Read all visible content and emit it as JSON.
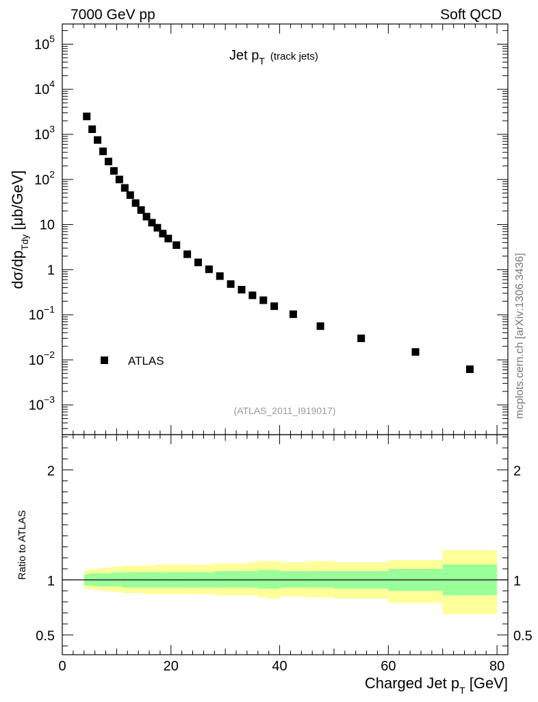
{
  "header": {
    "left": "7000 GeV pp",
    "right": "Soft QCD"
  },
  "plot_title": {
    "main": "Jet p",
    "sub": "T",
    "note": "(track jets)"
  },
  "reference": "(ATLAS_2011_I919017)",
  "side_label": "mcplots.cern.ch [arXiv:1306.3436]",
  "legend": {
    "label": "ATLAS",
    "placement": "lower-left"
  },
  "colors": {
    "band_inner": "#99ff99",
    "band_outer": "#ffff99",
    "marker": "#000000"
  },
  "chart_data": [
    {
      "type": "scatter",
      "panel": "main",
      "yscale": "log",
      "ylabel": "dσ/dp_Tdy [μb/GeV]",
      "ylabel_parts": {
        "pre": "dσ/dp",
        "sub": "Tdy",
        "post": " [μb/GeV]"
      },
      "xlim": [
        0,
        82
      ],
      "ylim": [
        0.00022,
        280000
      ],
      "y_ticks": [
        {
          "value": 100000,
          "base": "10",
          "exp": "5"
        },
        {
          "value": 10000,
          "base": "10",
          "exp": "4"
        },
        {
          "value": 1000,
          "base": "10",
          "exp": "3"
        },
        {
          "value": 100,
          "base": "10",
          "exp": "2"
        },
        {
          "value": 10,
          "base": "10",
          "exp": ""
        },
        {
          "value": 1,
          "base": "1",
          "exp": ""
        },
        {
          "value": 0.1,
          "base": "10",
          "exp": "−1"
        },
        {
          "value": 0.01,
          "base": "10",
          "exp": "−2"
        },
        {
          "value": 0.001,
          "base": "10",
          "exp": "−3"
        }
      ],
      "series": [
        {
          "name": "ATLAS",
          "marker": "square",
          "x": [
            4.5,
            5.5,
            6.5,
            7.5,
            8.5,
            9.5,
            10.5,
            11.5,
            12.5,
            13.5,
            14.5,
            15.5,
            16.5,
            17.5,
            18.5,
            19.5,
            21,
            23,
            25,
            27,
            29,
            31,
            33,
            35,
            37,
            39,
            42.5,
            47.5,
            55,
            65,
            75
          ],
          "y": [
            2500,
            1300,
            750,
            420,
            250,
            155,
            100,
            65,
            45,
            30,
            21,
            15,
            11,
            8.5,
            6.3,
            4.9,
            3.5,
            2.2,
            1.45,
            1.02,
            0.72,
            0.48,
            0.36,
            0.27,
            0.21,
            0.155,
            0.103,
            0.056,
            0.03,
            0.015,
            0.0062
          ]
        }
      ]
    },
    {
      "type": "area",
      "panel": "ratio",
      "ylabel": "Ratio to ATLAS",
      "xlabel_parts": {
        "pre": "Charged Jet p",
        "sub": "T",
        "post": " [GeV]"
      },
      "xlim": [
        0,
        82
      ],
      "ylim": [
        0.32,
        2.32
      ],
      "x_ticks": [
        0,
        20,
        40,
        60,
        80
      ],
      "y_ticks": [
        0.5,
        1,
        2
      ],
      "y_tick_labels": [
        "0.5",
        "1",
        "2"
      ],
      "reference_line": 1,
      "bins": [
        {
          "lo": 4,
          "hi": 5,
          "inner": [
            0.95,
            1.05
          ],
          "outer": [
            0.92,
            1.09
          ]
        },
        {
          "lo": 5,
          "hi": 6,
          "inner": [
            0.95,
            1.06
          ],
          "outer": [
            0.91,
            1.1
          ]
        },
        {
          "lo": 6,
          "hi": 7,
          "inner": [
            0.94,
            1.06
          ],
          "outer": [
            0.91,
            1.1
          ]
        },
        {
          "lo": 7,
          "hi": 8,
          "inner": [
            0.94,
            1.06
          ],
          "outer": [
            0.9,
            1.11
          ]
        },
        {
          "lo": 8,
          "hi": 9,
          "inner": [
            0.94,
            1.06
          ],
          "outer": [
            0.9,
            1.11
          ]
        },
        {
          "lo": 9,
          "hi": 10,
          "inner": [
            0.94,
            1.07
          ],
          "outer": [
            0.89,
            1.12
          ]
        },
        {
          "lo": 10,
          "hi": 11,
          "inner": [
            0.94,
            1.07
          ],
          "outer": [
            0.89,
            1.12
          ]
        },
        {
          "lo": 11,
          "hi": 12,
          "inner": [
            0.93,
            1.07
          ],
          "outer": [
            0.88,
            1.13
          ]
        },
        {
          "lo": 12,
          "hi": 13,
          "inner": [
            0.93,
            1.07
          ],
          "outer": [
            0.88,
            1.13
          ]
        },
        {
          "lo": 13,
          "hi": 14,
          "inner": [
            0.93,
            1.07
          ],
          "outer": [
            0.88,
            1.13
          ]
        },
        {
          "lo": 14,
          "hi": 15,
          "inner": [
            0.93,
            1.07
          ],
          "outer": [
            0.88,
            1.13
          ]
        },
        {
          "lo": 15,
          "hi": 16,
          "inner": [
            0.93,
            1.07
          ],
          "outer": [
            0.87,
            1.13
          ]
        },
        {
          "lo": 16,
          "hi": 17,
          "inner": [
            0.93,
            1.07
          ],
          "outer": [
            0.87,
            1.13
          ]
        },
        {
          "lo": 17,
          "hi": 18,
          "inner": [
            0.93,
            1.07
          ],
          "outer": [
            0.87,
            1.14
          ]
        },
        {
          "lo": 18,
          "hi": 19,
          "inner": [
            0.93,
            1.07
          ],
          "outer": [
            0.87,
            1.14
          ]
        },
        {
          "lo": 19,
          "hi": 20,
          "inner": [
            0.93,
            1.07
          ],
          "outer": [
            0.87,
            1.14
          ]
        },
        {
          "lo": 20,
          "hi": 22,
          "inner": [
            0.93,
            1.07
          ],
          "outer": [
            0.87,
            1.14
          ]
        },
        {
          "lo": 22,
          "hi": 24,
          "inner": [
            0.93,
            1.07
          ],
          "outer": [
            0.87,
            1.14
          ]
        },
        {
          "lo": 24,
          "hi": 26,
          "inner": [
            0.93,
            1.07
          ],
          "outer": [
            0.87,
            1.14
          ]
        },
        {
          "lo": 26,
          "hi": 28,
          "inner": [
            0.93,
            1.07
          ],
          "outer": [
            0.87,
            1.14
          ]
        },
        {
          "lo": 28,
          "hi": 30,
          "inner": [
            0.93,
            1.08
          ],
          "outer": [
            0.86,
            1.15
          ]
        },
        {
          "lo": 30,
          "hi": 32,
          "inner": [
            0.93,
            1.08
          ],
          "outer": [
            0.86,
            1.15
          ]
        },
        {
          "lo": 32,
          "hi": 34,
          "inner": [
            0.93,
            1.08
          ],
          "outer": [
            0.86,
            1.15
          ]
        },
        {
          "lo": 34,
          "hi": 36,
          "inner": [
            0.93,
            1.08
          ],
          "outer": [
            0.86,
            1.16
          ]
        },
        {
          "lo": 36,
          "hi": 38,
          "inner": [
            0.92,
            1.09
          ],
          "outer": [
            0.84,
            1.17
          ]
        },
        {
          "lo": 38,
          "hi": 40,
          "inner": [
            0.92,
            1.09
          ],
          "outer": [
            0.83,
            1.17
          ]
        },
        {
          "lo": 40,
          "hi": 45,
          "inner": [
            0.93,
            1.08
          ],
          "outer": [
            0.85,
            1.16
          ]
        },
        {
          "lo": 45,
          "hi": 50,
          "inner": [
            0.93,
            1.08
          ],
          "outer": [
            0.84,
            1.17
          ]
        },
        {
          "lo": 50,
          "hi": 60,
          "inner": [
            0.92,
            1.08
          ],
          "outer": [
            0.83,
            1.16
          ]
        },
        {
          "lo": 60,
          "hi": 70,
          "inner": [
            0.9,
            1.1
          ],
          "outer": [
            0.79,
            1.18
          ]
        },
        {
          "lo": 70,
          "hi": 80,
          "inner": [
            0.86,
            1.14
          ],
          "outer": [
            0.69,
            1.27
          ]
        }
      ]
    }
  ]
}
